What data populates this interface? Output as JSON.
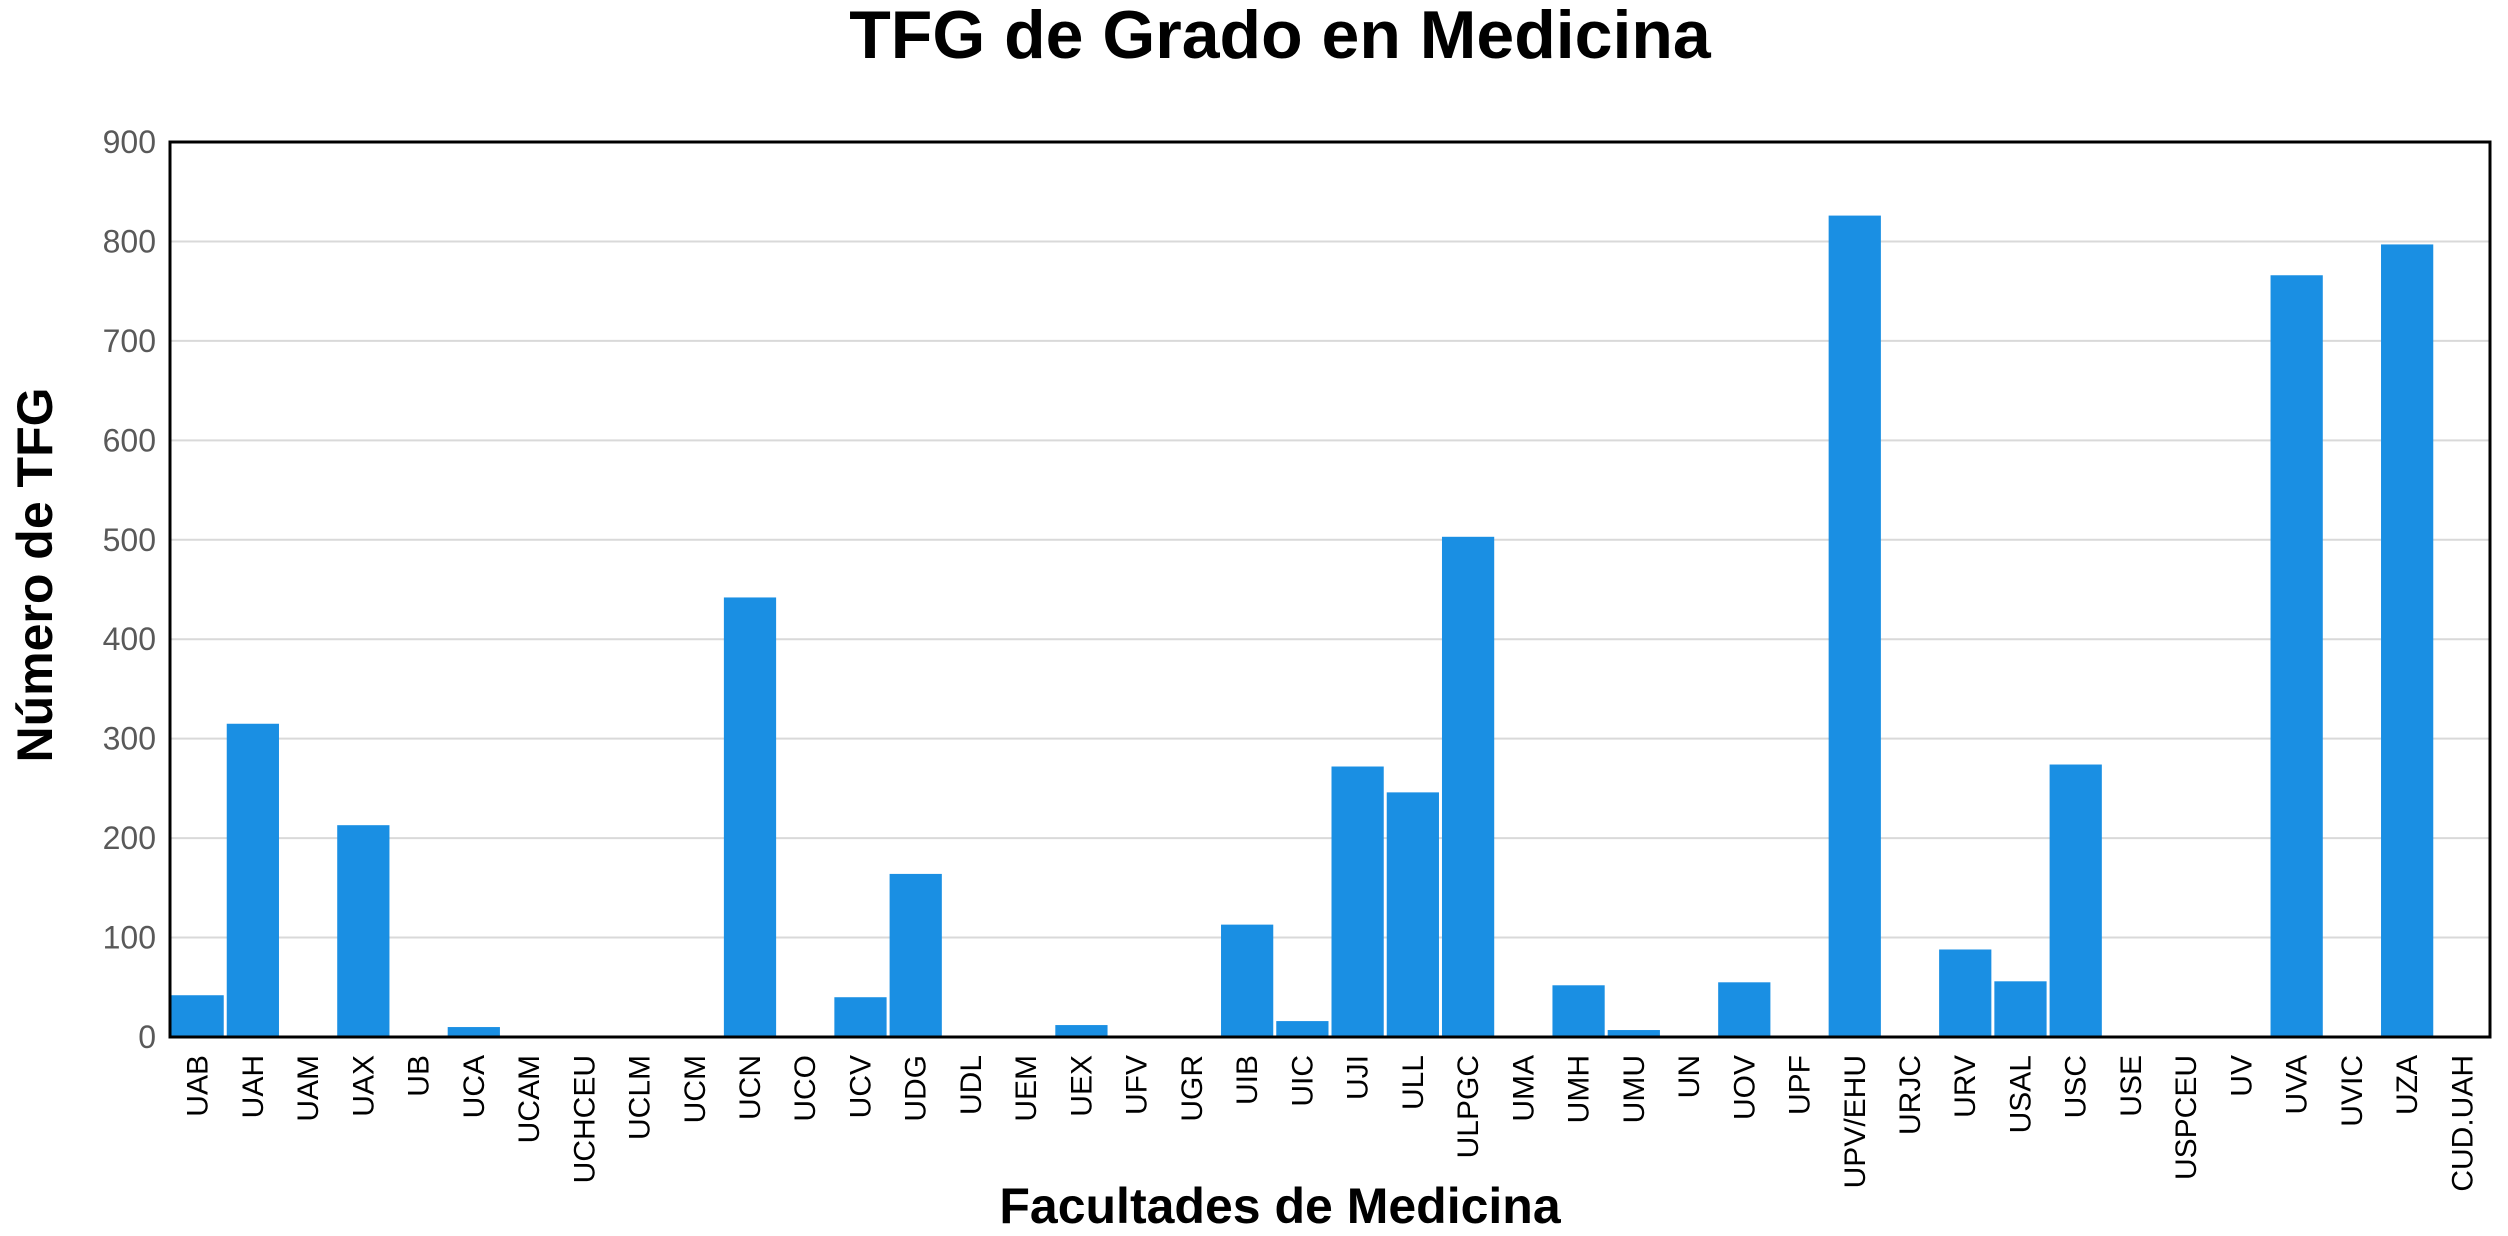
{
  "chart_data": {
    "type": "bar",
    "title": "TFG de Grado en Medicina",
    "xlabel": "Facultades de Medicina",
    "ylabel": "Número de TFG",
    "ylim": [
      0,
      900
    ],
    "yticks": [
      0,
      100,
      200,
      300,
      400,
      500,
      600,
      700,
      800,
      900
    ],
    "grid": true,
    "legend": "none",
    "bar_color": "#1a8fe3",
    "categories": [
      "UAB",
      "UAH",
      "UAM",
      "UAX",
      "UB",
      "UCA",
      "UCAM",
      "UCHCEU",
      "UCLM",
      "UCM",
      "UCN",
      "UCO",
      "UCV",
      "UDG",
      "UDL",
      "UEM",
      "UEX",
      "UFV",
      "UGR",
      "UIB",
      "UIC",
      "UJI",
      "ULL",
      "ULPGC",
      "UMA",
      "UMH",
      "UMU",
      "UN",
      "UOV",
      "UPF",
      "UPV/EHU",
      "URJC",
      "URV",
      "USAL",
      "USC",
      "USE",
      "USPCEU",
      "UV",
      "UVA",
      "UVIC",
      "UZA",
      "CUD.UAH"
    ],
    "values": [
      42,
      315,
      0,
      213,
      0,
      10,
      0,
      0,
      0,
      0,
      442,
      0,
      40,
      164,
      0,
      0,
      12,
      0,
      0,
      113,
      16,
      272,
      246,
      503,
      0,
      52,
      7,
      0,
      55,
      0,
      826,
      0,
      88,
      56,
      274,
      0,
      0,
      0,
      766,
      0,
      797,
      0
    ]
  }
}
